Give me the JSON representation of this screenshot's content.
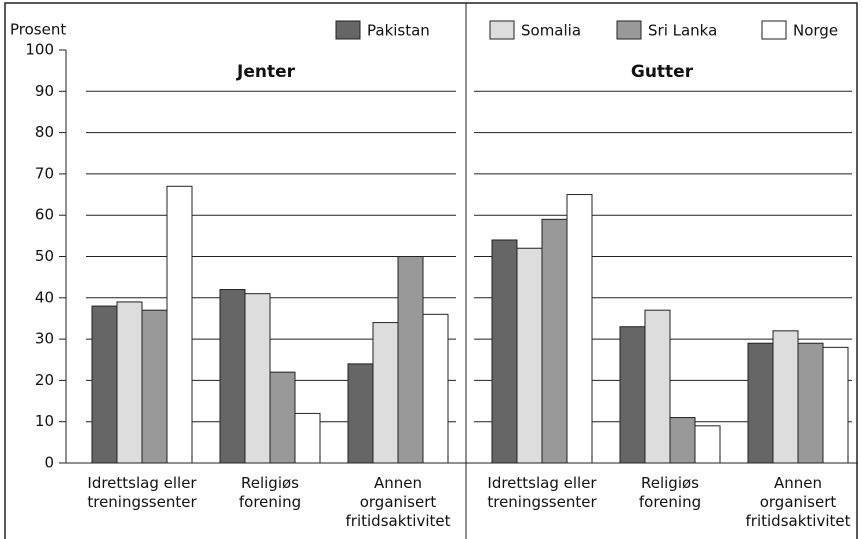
{
  "chart_data": {
    "type": "bar",
    "ylabel": "Prosent",
    "ylim": [
      0,
      100
    ],
    "yticks": [
      0,
      10,
      20,
      30,
      40,
      50,
      60,
      70,
      80,
      90,
      100
    ],
    "grid": true,
    "panels": [
      {
        "title": "Jenter",
        "categories": [
          "Idrettslag eller\ntreningssenter",
          "Religiøs\nforening",
          "Annen\norganisert\nfritidsaktivitet"
        ]
      },
      {
        "title": "Gutter",
        "categories": [
          "Idrettslag eller\ntreningssenter",
          "Religiøs\nforening",
          "Annen\norganisert\nfritidsaktivitet"
        ]
      }
    ],
    "series": [
      {
        "name": "Pakistan",
        "color": "#666666",
        "values": [
          38,
          42,
          24,
          54,
          33,
          29
        ]
      },
      {
        "name": "Somalia",
        "color": "#dddddd",
        "values": [
          39,
          41,
          34,
          52,
          37,
          32
        ]
      },
      {
        "name": "Sri Lanka",
        "color": "#999999",
        "values": [
          37,
          22,
          50,
          59,
          11,
          29
        ]
      },
      {
        "name": "Norge",
        "color": "#ffffff",
        "values": [
          67,
          12,
          36,
          65,
          9,
          28
        ]
      }
    ]
  }
}
